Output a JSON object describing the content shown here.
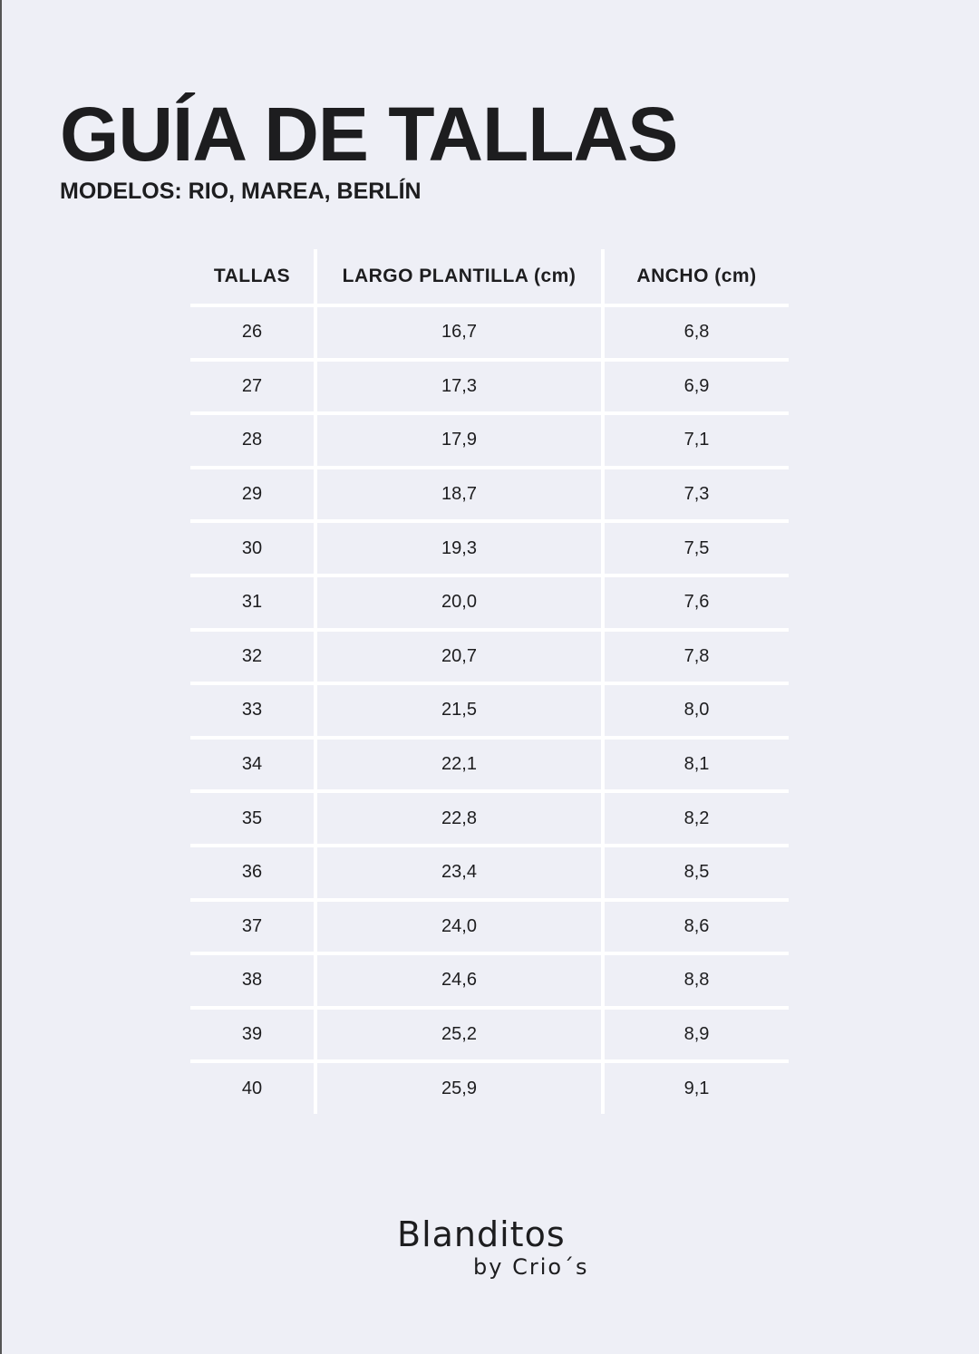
{
  "title": "GUÍA DE TALLAS",
  "subtitle": "MODELOS: RIO, MAREA, BERLÍN",
  "table": {
    "headers": [
      "TALLAS",
      "LARGO PLANTILLA (cm)",
      "ANCHO (cm)"
    ],
    "rows": [
      [
        "26",
        "16,7",
        "6,8"
      ],
      [
        "27",
        "17,3",
        "6,9"
      ],
      [
        "28",
        "17,9",
        "7,1"
      ],
      [
        "29",
        "18,7",
        "7,3"
      ],
      [
        "30",
        "19,3",
        "7,5"
      ],
      [
        "31",
        "20,0",
        "7,6"
      ],
      [
        "32",
        "20,7",
        "7,8"
      ],
      [
        "33",
        "21,5",
        "8,0"
      ],
      [
        "34",
        "22,1",
        "8,1"
      ],
      [
        "35",
        "22,8",
        "8,2"
      ],
      [
        "36",
        "23,4",
        "8,5"
      ],
      [
        "37",
        "24,0",
        "8,6"
      ],
      [
        "38",
        "24,6",
        "8,8"
      ],
      [
        "39",
        "25,2",
        "8,9"
      ],
      [
        "40",
        "25,9",
        "9,1"
      ]
    ]
  },
  "logo": {
    "brand": "Blanditos",
    "tagline": "by Crio´s"
  }
}
